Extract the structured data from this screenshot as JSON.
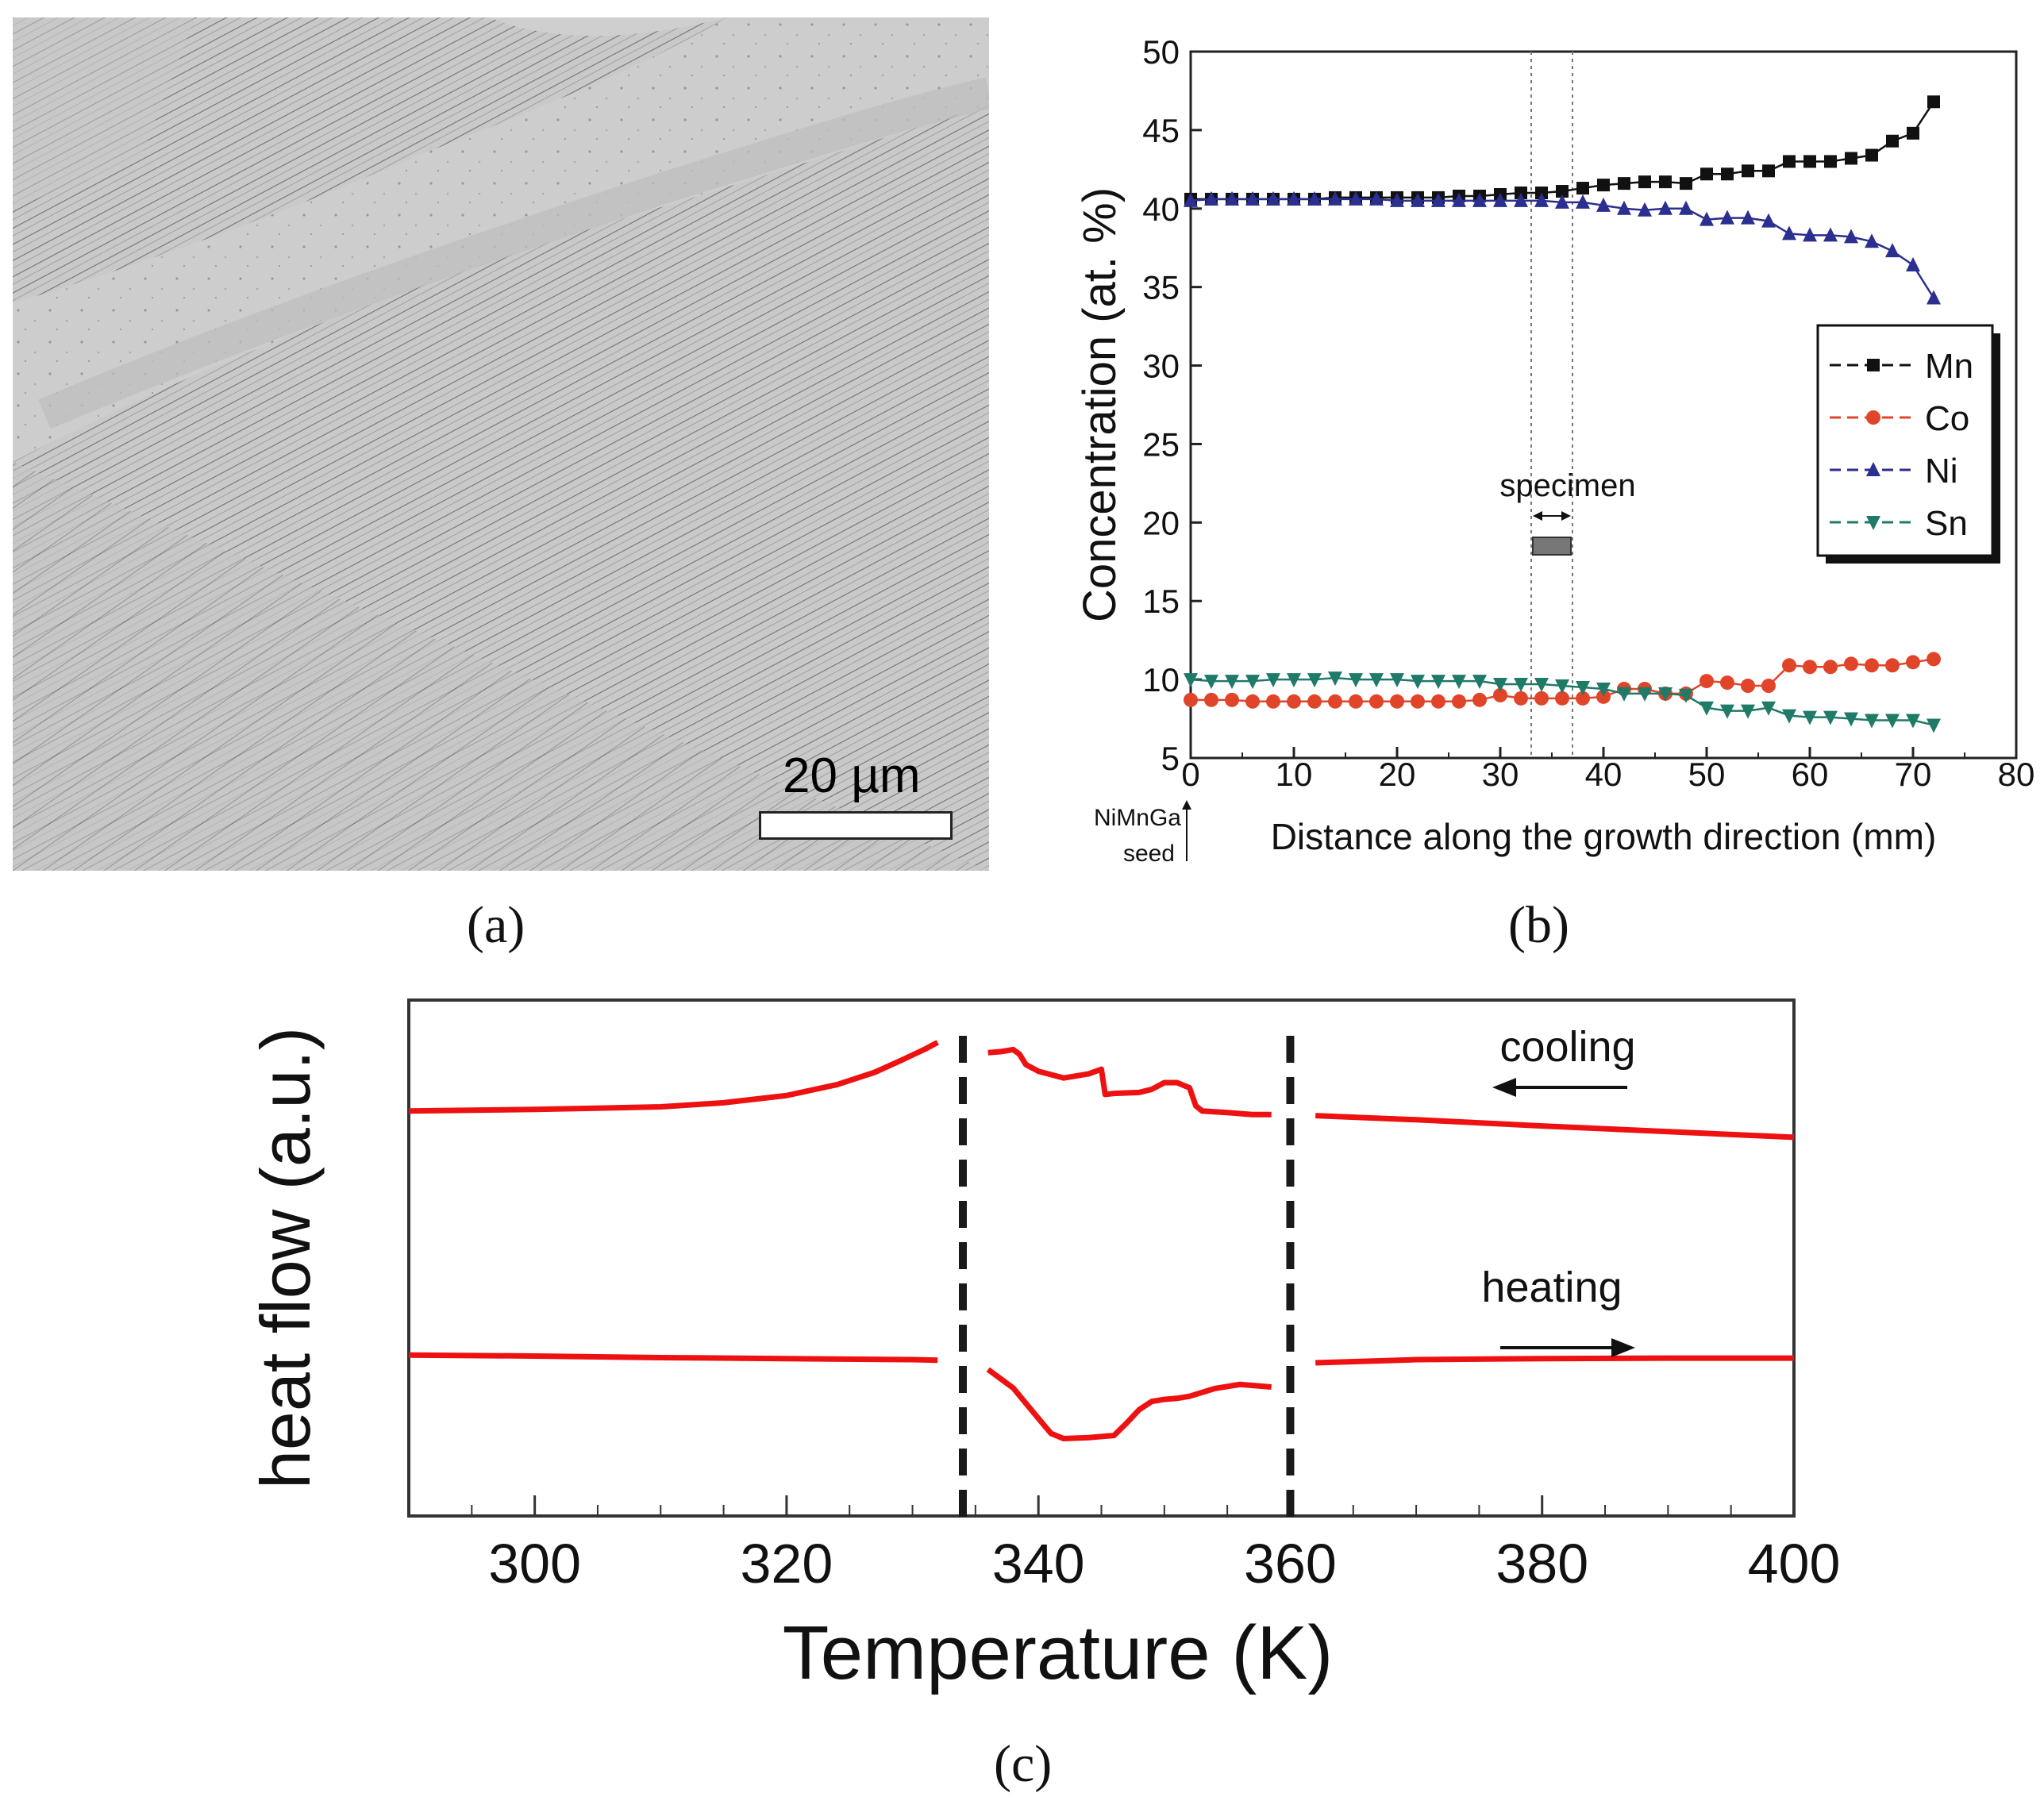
{
  "panels": {
    "a": {
      "label": "(a)",
      "scale_bar": "20 µm"
    },
    "b": {
      "label": "(b)"
    },
    "c": {
      "label": "(c)"
    }
  },
  "colors": {
    "Mn": "#111111",
    "Co": "#e0452a",
    "Ni": "#2b2f8f",
    "Sn": "#1f7a68",
    "dsc": "#ee1111"
  },
  "chart_data": [
    {
      "panel": "b",
      "type": "line",
      "title": "",
      "xlabel": "Distance along the growth direction (mm)",
      "ylabel": "Concentration (at. %)",
      "xlim": [
        0,
        80
      ],
      "ylim": [
        5,
        50
      ],
      "xticks": [
        0,
        10,
        20,
        30,
        40,
        50,
        60,
        70,
        80
      ],
      "yticks": [
        5,
        10,
        15,
        20,
        25,
        30,
        35,
        40,
        45,
        50
      ],
      "legend_position": "right",
      "annotations": {
        "specimen": "specimen",
        "seed_line1": "NiMnGa",
        "seed_line2": "seed",
        "specimen_range": [
          33,
          37
        ]
      },
      "series": [
        {
          "name": "Mn",
          "marker": "square",
          "x": [
            0,
            2,
            4,
            6,
            8,
            10,
            12,
            14,
            16,
            18,
            20,
            22,
            24,
            26,
            28,
            30,
            32,
            34,
            36,
            38,
            40,
            42,
            44,
            46,
            48,
            50,
            52,
            54,
            56,
            58,
            60,
            62,
            64,
            66,
            68,
            70,
            72
          ],
          "values": [
            40.6,
            40.6,
            40.6,
            40.6,
            40.6,
            40.6,
            40.6,
            40.7,
            40.7,
            40.7,
            40.7,
            40.7,
            40.7,
            40.8,
            40.8,
            40.9,
            41.0,
            41.0,
            41.1,
            41.3,
            41.5,
            41.6,
            41.7,
            41.7,
            41.6,
            42.2,
            42.2,
            42.4,
            42.4,
            43.0,
            43.0,
            43.0,
            43.2,
            43.4,
            44.3,
            44.8,
            46.8
          ]
        },
        {
          "name": "Co",
          "marker": "circle",
          "x": [
            0,
            2,
            4,
            6,
            8,
            10,
            12,
            14,
            16,
            18,
            20,
            22,
            24,
            26,
            28,
            30,
            32,
            34,
            36,
            38,
            40,
            42,
            44,
            46,
            48,
            50,
            52,
            54,
            56,
            58,
            60,
            62,
            64,
            66,
            68,
            70,
            72
          ],
          "values": [
            8.7,
            8.7,
            8.7,
            8.6,
            8.6,
            8.6,
            8.6,
            8.6,
            8.6,
            8.6,
            8.6,
            8.6,
            8.6,
            8.6,
            8.7,
            9.0,
            8.8,
            8.8,
            8.8,
            8.8,
            8.9,
            9.4,
            9.4,
            9.1,
            9.1,
            9.9,
            9.8,
            9.6,
            9.6,
            10.9,
            10.8,
            10.8,
            11.0,
            10.9,
            10.9,
            11.1,
            11.3
          ]
        },
        {
          "name": "Ni",
          "marker": "triangle-up",
          "x": [
            0,
            2,
            4,
            6,
            8,
            10,
            12,
            14,
            16,
            18,
            20,
            22,
            24,
            26,
            28,
            30,
            32,
            34,
            36,
            38,
            40,
            42,
            44,
            46,
            48,
            50,
            52,
            54,
            56,
            58,
            60,
            62,
            64,
            66,
            68,
            70,
            72
          ],
          "values": [
            40.5,
            40.6,
            40.6,
            40.6,
            40.6,
            40.6,
            40.6,
            40.6,
            40.6,
            40.6,
            40.5,
            40.5,
            40.5,
            40.5,
            40.5,
            40.5,
            40.5,
            40.5,
            40.4,
            40.4,
            40.2,
            40.0,
            39.9,
            40.0,
            40.0,
            39.3,
            39.4,
            39.4,
            39.2,
            38.4,
            38.3,
            38.3,
            38.2,
            37.9,
            37.3,
            36.4,
            34.3
          ]
        },
        {
          "name": "Sn",
          "marker": "triangle-down",
          "x": [
            0,
            2,
            4,
            6,
            8,
            10,
            12,
            14,
            16,
            18,
            20,
            22,
            24,
            26,
            28,
            30,
            32,
            34,
            36,
            38,
            40,
            42,
            44,
            46,
            48,
            50,
            52,
            54,
            56,
            58,
            60,
            62,
            64,
            66,
            68,
            70,
            72
          ],
          "values": [
            10.0,
            9.9,
            9.9,
            9.9,
            10.0,
            10.0,
            10.0,
            10.1,
            10.0,
            10.0,
            10.0,
            9.9,
            9.9,
            9.9,
            9.9,
            9.7,
            9.7,
            9.7,
            9.6,
            9.5,
            9.4,
            9.1,
            9.1,
            9.1,
            9.0,
            8.2,
            8.0,
            8.0,
            8.2,
            7.7,
            7.6,
            7.6,
            7.5,
            7.4,
            7.4,
            7.4,
            7.1
          ]
        }
      ]
    },
    {
      "panel": "c",
      "type": "line",
      "title": "",
      "xlabel": "Temperature (K)",
      "ylabel": "heat flow (a.u.)",
      "xlim": [
        290,
        400
      ],
      "ylim": [
        0,
        100
      ],
      "xticks": [
        300,
        320,
        340,
        360,
        380,
        400
      ],
      "y_tick_labels": false,
      "dashed_lines_x": [
        334,
        360
      ],
      "annotations": {
        "cooling": "cooling",
        "heating": "heating"
      },
      "series": [
        {
          "name": "cooling",
          "direction": "decreasing T",
          "segments": [
            {
              "x": [
                290,
                300,
                310,
                315,
                320,
                324,
                327,
                329,
                331,
                332
              ],
              "values": [
                78.5,
                78.8,
                79.3,
                80.1,
                81.5,
                83.6,
                86.0,
                88.2,
                90.5,
                91.8
              ]
            },
            {
              "x": [
                336,
                337,
                338,
                338.5,
                339,
                340,
                342,
                344,
                345,
                345.3,
                346,
                348,
                349,
                350,
                351,
                352,
                352.5,
                353,
                355,
                357,
                358.5
              ],
              "values": [
                89.8,
                90.0,
                90.4,
                89.5,
                87.5,
                86.2,
                84.9,
                85.7,
                86.6,
                81.7,
                81.9,
                82.1,
                82.7,
                84.0,
                84.0,
                83.0,
                79.5,
                78.5,
                78.2,
                77.8,
                77.8
              ]
            },
            {
              "x": [
                362,
                370,
                380,
                390,
                400
              ],
              "values": [
                77.6,
                76.8,
                75.6,
                74.5,
                73.4
              ]
            }
          ]
        },
        {
          "name": "heating",
          "direction": "increasing T",
          "segments": [
            {
              "x": [
                290,
                300,
                310,
                320,
                330,
                332
              ],
              "values": [
                31.2,
                31.0,
                30.7,
                30.5,
                30.3,
                30.2
              ]
            },
            {
              "x": [
                336,
                338,
                340,
                341,
                342,
                344,
                346,
                347,
                348,
                349,
                350,
                351,
                352,
                354,
                356,
                358.5
              ],
              "values": [
                28.4,
                24.8,
                18.9,
                16.0,
                15.0,
                15.2,
                15.6,
                18.0,
                20.6,
                22.2,
                22.6,
                22.8,
                23.2,
                24.7,
                25.5,
                25.0
              ]
            },
            {
              "x": [
                362,
                370,
                380,
                390,
                400
              ],
              "values": [
                29.7,
                30.3,
                30.5,
                30.6,
                30.6
              ]
            }
          ]
        }
      ]
    }
  ]
}
